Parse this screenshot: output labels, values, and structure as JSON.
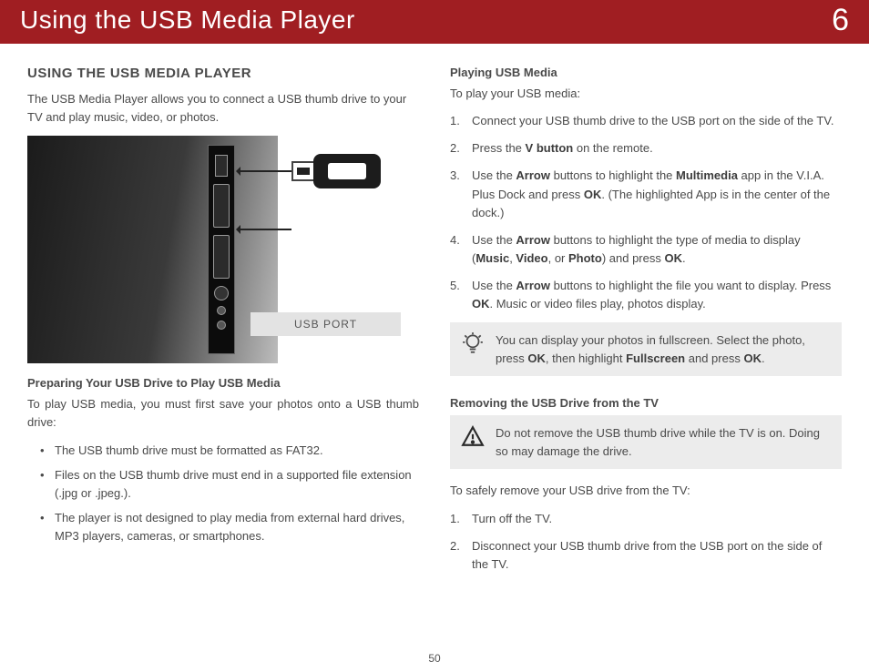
{
  "header": {
    "title": "Using the USB Media Player",
    "chapter": "6"
  },
  "left": {
    "section_title": "USING THE USB MEDIA PLAYER",
    "intro": "The USB Media Player allows you to connect a USB thumb drive to your TV and play music, video, or photos.",
    "port_label": "USB PORT",
    "prep_title": "Preparing Your USB Drive to Play USB Media",
    "prep_intro": "To play USB media, you must first save your photos onto a USB thumb drive:",
    "prep_bullets": [
      "The USB thumb drive must be formatted as FAT32.",
      "Files on the USB thumb drive must end in a supported file extension (.jpg or .jpeg.).",
      "The player is not designed to play media from external hard drives, MP3 players, cameras, or smartphones."
    ]
  },
  "right": {
    "play_title": "Playing USB Media",
    "play_intro": "To play your USB media:",
    "play_steps_html": [
      "Connect your USB thumb drive to the USB port on the side of the TV.",
      "Press the <b>V button</b> on the remote.",
      "Use the <b>Arrow</b> buttons to highlight the <b>Multimedia</b> app in the V.I.A. Plus Dock and press <b>OK</b>. (The highlighted App is in the center of the dock.)",
      "Use the <b>Arrow</b> buttons to highlight the type of media to display (<b>Music</b>, <b>Video</b>, or <b>Photo</b>) and press <b>OK</b>.",
      "Use the <b>Arrow</b> buttons to highlight the file you want to display. Press <b>OK</b>. Music or video files play, photos display."
    ],
    "tip_html": "You can display your photos in fullscreen. Select the photo, press <b>OK</b>, then highlight <b>Fullscreen</b> and press <b>OK</b>.",
    "remove_title": "Removing the USB Drive from the TV",
    "warn_text": "Do not remove the USB thumb drive while the TV is on. Doing so may damage the drive.",
    "remove_intro": "To safely remove your USB drive from the TV:",
    "remove_steps": [
      "Turn off the TV.",
      "Disconnect your USB thumb drive from the USB port on the side of the TV."
    ]
  },
  "page_number": "50"
}
